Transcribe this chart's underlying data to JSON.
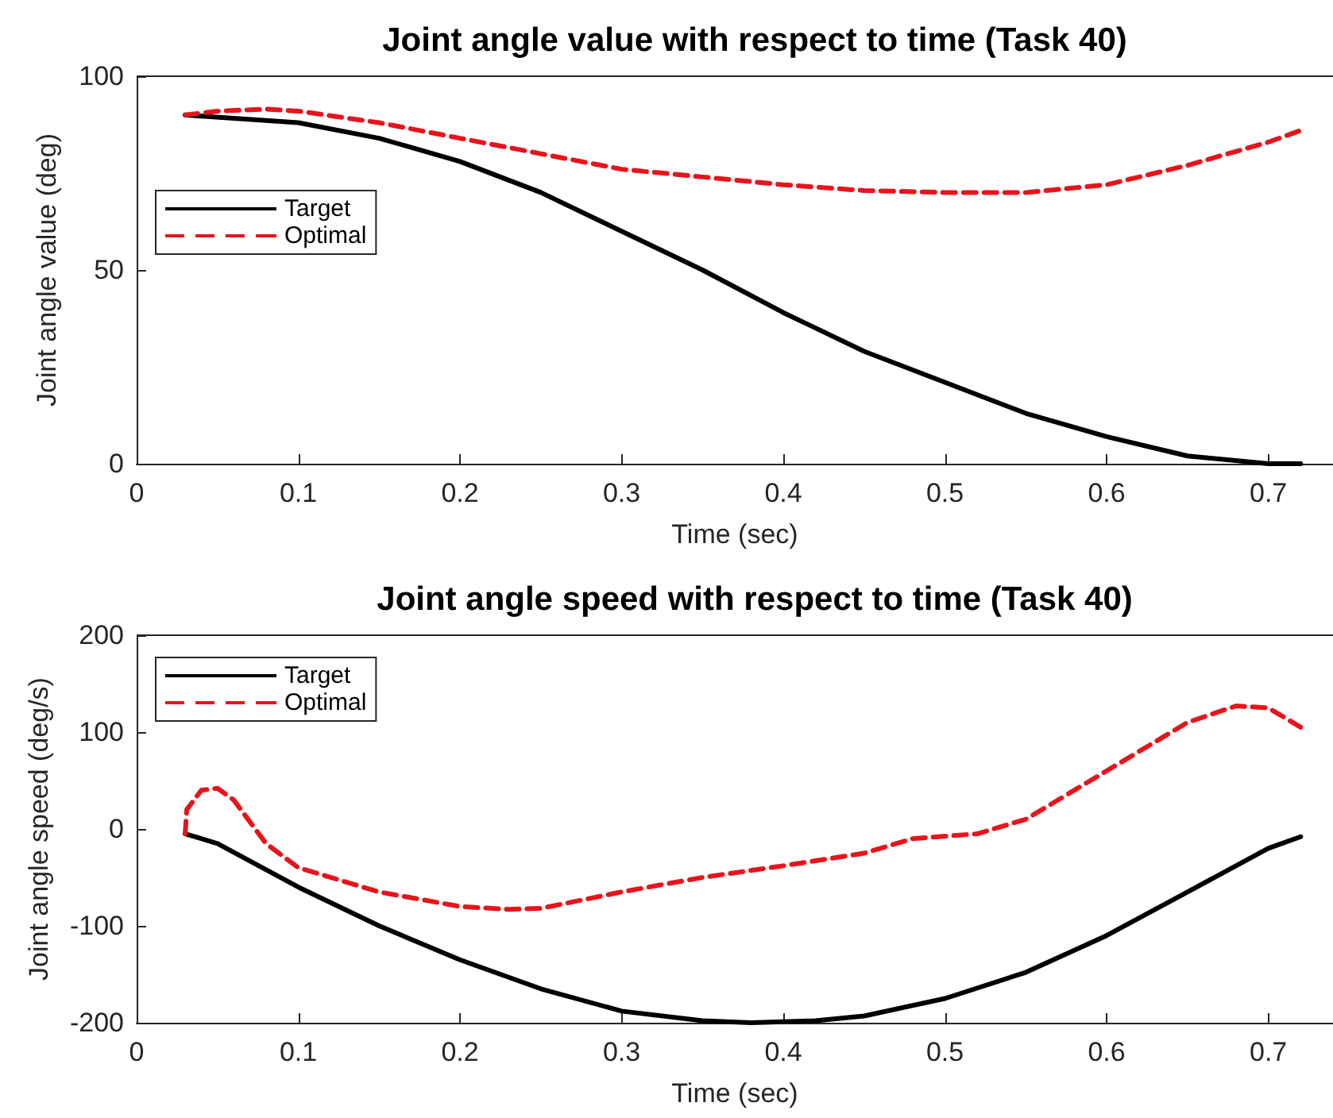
{
  "chart_data": [
    {
      "type": "line",
      "title": "Joint angle value with respect to time (Task 40)",
      "xlabel": "Time (sec)",
      "ylabel": "Joint angle value (deg)",
      "xlim": [
        0,
        0.74
      ],
      "xticks": [
        0,
        0.1,
        0.2,
        0.3,
        0.4,
        0.5,
        0.6,
        0.7
      ],
      "ylim": [
        0,
        100
      ],
      "yticks": [
        0,
        50,
        100
      ],
      "grid": false,
      "legend": "left",
      "marker": "none",
      "series": [
        {
          "name": "Target",
          "color": "#000000",
          "line_style": "solid",
          "x": [
            0.03,
            0.1,
            0.15,
            0.2,
            0.25,
            0.3,
            0.35,
            0.4,
            0.45,
            0.5,
            0.55,
            0.6,
            0.65,
            0.7,
            0.72
          ],
          "values": [
            90,
            88,
            84,
            78,
            70,
            60,
            50,
            39,
            29,
            21,
            13,
            7,
            2,
            0,
            0
          ]
        },
        {
          "name": "Optimal",
          "color": "#e8141c",
          "line_style": "dashed",
          "x": [
            0.03,
            0.05,
            0.08,
            0.1,
            0.15,
            0.2,
            0.25,
            0.3,
            0.35,
            0.4,
            0.45,
            0.5,
            0.55,
            0.6,
            0.65,
            0.7,
            0.72
          ],
          "values": [
            90,
            91,
            91.5,
            91,
            88,
            84,
            80,
            76,
            74,
            72,
            70.5,
            70,
            70,
            72,
            77,
            83,
            86
          ]
        }
      ]
    },
    {
      "type": "line",
      "title": "Joint angle speed with respect to time (Task 40)",
      "xlabel": "Time (sec)",
      "ylabel": "Joint angle speed (deg/s)",
      "xlim": [
        0,
        0.74
      ],
      "xticks": [
        0,
        0.1,
        0.2,
        0.3,
        0.4,
        0.5,
        0.6,
        0.7
      ],
      "ylim": [
        -200,
        200
      ],
      "yticks": [
        -200,
        -100,
        0,
        100,
        200
      ],
      "grid": false,
      "legend": "top left",
      "marker": "none",
      "series": [
        {
          "name": "Target",
          "color": "#000000",
          "line_style": "solid",
          "x": [
            0.03,
            0.05,
            0.1,
            0.15,
            0.2,
            0.25,
            0.3,
            0.35,
            0.38,
            0.42,
            0.45,
            0.5,
            0.55,
            0.6,
            0.65,
            0.7,
            0.72
          ],
          "values": [
            -5,
            -15,
            -60,
            -100,
            -135,
            -165,
            -188,
            -198,
            -200,
            -198,
            -193,
            -175,
            -148,
            -110,
            -65,
            -20,
            -8
          ]
        },
        {
          "name": "Optimal",
          "color": "#e8141c",
          "line_style": "dashed",
          "x": [
            0.03,
            0.031,
            0.04,
            0.05,
            0.06,
            0.08,
            0.1,
            0.15,
            0.2,
            0.23,
            0.25,
            0.3,
            0.35,
            0.4,
            0.45,
            0.48,
            0.52,
            0.55,
            0.6,
            0.65,
            0.68,
            0.7,
            0.72
          ],
          "values": [
            -5,
            20,
            40,
            42,
            30,
            -15,
            -40,
            -65,
            -80,
            -83,
            -82,
            -65,
            -50,
            -38,
            -25,
            -10,
            -5,
            10,
            60,
            110,
            127,
            125,
            105
          ]
        }
      ]
    }
  ]
}
